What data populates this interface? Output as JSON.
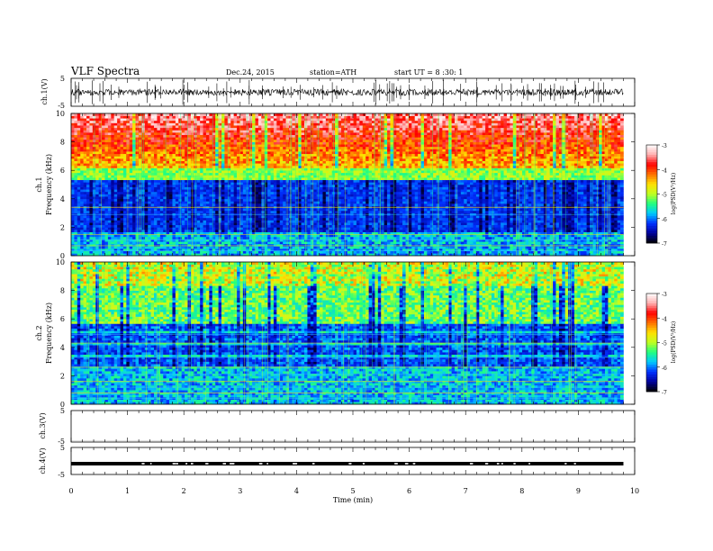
{
  "header": {
    "title": "VLF  Spectra",
    "date": "Dec.24, 2015",
    "station": "station=ATH",
    "start_ut": "start  UT  =   8  :30: 1"
  },
  "chart_data": [
    {
      "type": "line",
      "panel": "ch1-waveform",
      "ylabel": "ch.1(V)",
      "ylim": [
        -5,
        5
      ],
      "yticks": [
        "5",
        "-5"
      ],
      "xlim": [
        0,
        10
      ]
    },
    {
      "type": "heatmap",
      "panel": "ch1-spectrogram",
      "ylabel_line1": "ch.1",
      "ylabel_line2": "Frequency (kHz)",
      "ylim": [
        0,
        10
      ],
      "yticks": [
        "0",
        "2",
        "4",
        "6",
        "8",
        "10"
      ],
      "xlim": [
        0,
        10
      ],
      "colorbar": {
        "label": "log(PSD(V²/Hz)",
        "range": [
          -7,
          -3
        ],
        "ticks": [
          "-3",
          "-4",
          "-5",
          "-6",
          "-7"
        ]
      }
    },
    {
      "type": "heatmap",
      "panel": "ch2-spectrogram",
      "ylabel_line1": "ch.2",
      "ylabel_line2": "Frequency (kHz)",
      "ylim": [
        0,
        10
      ],
      "yticks": [
        "0",
        "2",
        "4",
        "6",
        "8",
        "10"
      ],
      "xlim": [
        0,
        10
      ],
      "colorbar": {
        "label": "log(PSD(V²/Hz)",
        "range": [
          -7,
          -3
        ],
        "ticks": [
          "-3",
          "-4",
          "-5",
          "-6",
          "-7"
        ]
      }
    },
    {
      "type": "line",
      "panel": "ch3-waveform",
      "ylabel": "ch.3(V)",
      "ylim": [
        -5,
        5
      ],
      "yticks": [
        "5",
        "-5"
      ],
      "xlim": [
        0,
        10
      ]
    },
    {
      "type": "line",
      "panel": "ch4-waveform",
      "ylabel": "ch.4(V)",
      "ylim": [
        -5,
        5
      ],
      "yticks": [
        "5",
        "-5"
      ],
      "xlim": [
        0,
        10
      ],
      "series": [
        {
          "level": -1
        }
      ]
    }
  ],
  "xaxis": {
    "label": "Time  (min)",
    "ticks": [
      "0",
      "1",
      "2",
      "3",
      "4",
      "5",
      "6",
      "7",
      "8",
      "9",
      "10"
    ],
    "range": [
      0,
      10
    ],
    "data_end": 9.8
  },
  "colors": {
    "cmap": [
      "#000000",
      "#00009a",
      "#0030ff",
      "#00c8ff",
      "#20ff80",
      "#c0ff20",
      "#ffe000",
      "#ff7000",
      "#ff0000",
      "#ffb0b0",
      "#ffffff"
    ]
  }
}
